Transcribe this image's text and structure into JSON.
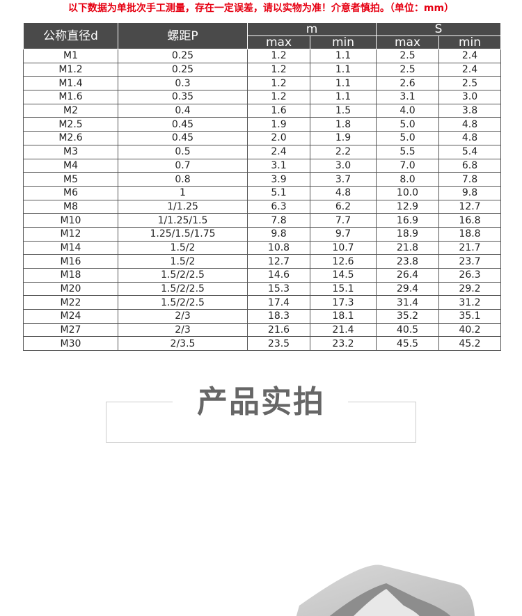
{
  "notice": "以下数据为单批次手工测量，存在一定误差，请以实物为准！介意者慎拍。（单位：mm）",
  "table": {
    "headers": {
      "d": "公称直径d",
      "p": "螺距P",
      "m": "m",
      "s": "S",
      "max": "max",
      "min": "min"
    },
    "rows": [
      [
        "M1",
        "0.25",
        "1.2",
        "1.1",
        "2.5",
        "2.4"
      ],
      [
        "M1.2",
        "0.25",
        "1.2",
        "1.1",
        "2.5",
        "2.4"
      ],
      [
        "M1.4",
        "0.3",
        "1.2",
        "1.1",
        "2.6",
        "2.5"
      ],
      [
        "M1.6",
        "0.35",
        "1.2",
        "1.1",
        "3.1",
        "3.0"
      ],
      [
        "M2",
        "0.4",
        "1.6",
        "1.5",
        "4.0",
        "3.8"
      ],
      [
        "M2.5",
        "0.45",
        "1.9",
        "1.8",
        "5.0",
        "4.8"
      ],
      [
        "M2.6",
        "0.45",
        "2.0",
        "1.9",
        "5.0",
        "4.8"
      ],
      [
        "M3",
        "0.5",
        "2.4",
        "2.2",
        "5.5",
        "5.4"
      ],
      [
        "M4",
        "0.7",
        "3.1",
        "3.0",
        "7.0",
        "6.8"
      ],
      [
        "M5",
        "0.8",
        "3.9",
        "3.7",
        "8.0",
        "7.8"
      ],
      [
        "M6",
        "1",
        "5.1",
        "4.8",
        "10.0",
        "9.8"
      ],
      [
        "M8",
        "1/1.25",
        "6.3",
        "6.2",
        "12.9",
        "12.7"
      ],
      [
        "M10",
        "1/1.25/1.5",
        "7.8",
        "7.7",
        "16.9",
        "16.8"
      ],
      [
        "M12",
        "1.25/1.5/1.75",
        "9.8",
        "9.7",
        "18.9",
        "18.8"
      ],
      [
        "M14",
        "1.5/2",
        "10.8",
        "10.7",
        "21.8",
        "21.7"
      ],
      [
        "M16",
        "1.5/2",
        "12.7",
        "12.6",
        "23.8",
        "23.7"
      ],
      [
        "M18",
        "1.5/2/2.5",
        "14.6",
        "14.5",
        "26.4",
        "26.3"
      ],
      [
        "M20",
        "1.5/2/2.5",
        "15.3",
        "15.1",
        "29.4",
        "29.2"
      ],
      [
        "M22",
        "1.5/2/2.5",
        "17.4",
        "17.3",
        "31.4",
        "31.2"
      ],
      [
        "M24",
        "2/3",
        "18.3",
        "18.1",
        "35.2",
        "35.1"
      ],
      [
        "M27",
        "2/3",
        "21.6",
        "21.4",
        "40.5",
        "40.2"
      ],
      [
        "M30",
        "2/3.5",
        "23.5",
        "23.2",
        "45.5",
        "45.2"
      ]
    ]
  },
  "section_title": "产品实拍",
  "photo_icon": "hex-nut-photo"
}
